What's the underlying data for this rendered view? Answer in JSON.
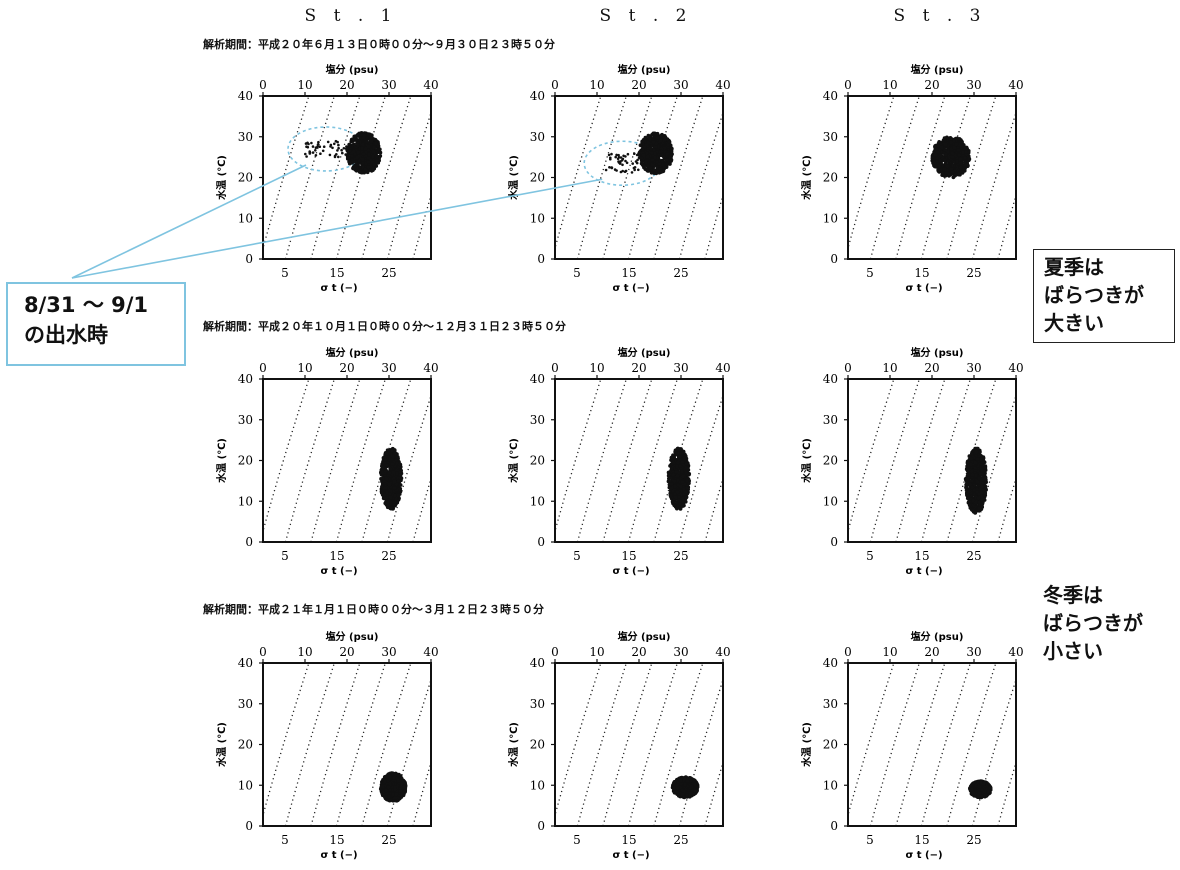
{
  "stations": [
    "S t . 1",
    "S t . 2",
    "S t . 3"
  ],
  "periods": [
    "解析期間：平成２０年６月１３日０時００分〜９月３０日２３時５０分",
    "解析期間：平成２０年１０月１日０時００分〜１２月３１日２３時５０分",
    "解析期間：平成２１年１月１日０時００分〜３月１２日２３時５０分"
  ],
  "notes": {
    "flood": [
      "8/31  〜  9/1",
      "の出水時"
    ],
    "summer": [
      "夏季は",
      "ばらつきが",
      "大きい"
    ],
    "winter": [
      "冬季は",
      "ばらつきが",
      "小さい"
    ]
  },
  "colors": {
    "marker": "#111111",
    "flood_highlight": "#7fc4e0"
  },
  "chart_data": [
    {
      "type": "scatter",
      "station": "S t . 1",
      "season": "summer",
      "xlabel_top": "塩分 (psu)",
      "xlabel_bottom": "σ t (−)",
      "ylabel": "水温 (℃)",
      "salinity_ticks": [
        0,
        10,
        20,
        30,
        40
      ],
      "sigma_t_ticks": [
        5,
        15,
        25
      ],
      "temperature_ticks": [
        0,
        10,
        20,
        30,
        40
      ],
      "xlim": [
        0,
        40
      ],
      "ylim": [
        0,
        40
      ],
      "cluster": {
        "salinity": [
          20,
          28
        ],
        "temperature": [
          21,
          31
        ]
      },
      "outliers": {
        "salinity": [
          10,
          20
        ],
        "temperature": [
          25,
          29
        ]
      },
      "highlight_flood": true
    },
    {
      "type": "scatter",
      "station": "S t . 2",
      "season": "summer",
      "xlabel_top": "塩分 (psu)",
      "xlabel_bottom": "σ t (−)",
      "ylabel": "水温 (℃)",
      "salinity_ticks": [
        0,
        10,
        20,
        30,
        40
      ],
      "sigma_t_ticks": [
        5,
        15,
        25
      ],
      "temperature_ticks": [
        0,
        10,
        20,
        30,
        40
      ],
      "xlim": [
        0,
        40
      ],
      "ylim": [
        0,
        40
      ],
      "cluster": {
        "salinity": [
          20,
          28
        ],
        "temperature": [
          21,
          31
        ]
      },
      "outliers": {
        "salinity": [
          12,
          20
        ],
        "temperature": [
          21,
          26
        ]
      },
      "highlight_flood": true
    },
    {
      "type": "scatter",
      "station": "S t . 3",
      "season": "summer",
      "xlabel_top": "塩分 (psu)",
      "xlabel_bottom": "σ t (−)",
      "ylabel": "水温 (℃)",
      "salinity_ticks": [
        0,
        10,
        20,
        30,
        40
      ],
      "sigma_t_ticks": [
        5,
        15,
        25
      ],
      "temperature_ticks": [
        0,
        10,
        20,
        30,
        40
      ],
      "xlim": [
        0,
        40
      ],
      "ylim": [
        0,
        40
      ],
      "cluster": {
        "salinity": [
          20,
          29
        ],
        "temperature": [
          20,
          30
        ]
      },
      "outliers": null,
      "highlight_flood": false
    },
    {
      "type": "scatter",
      "station": "S t . 1",
      "season": "autumn",
      "xlabel_top": "塩分 (psu)",
      "xlabel_bottom": "σ t (−)",
      "ylabel": "水温 (℃)",
      "salinity_ticks": [
        0,
        10,
        20,
        30,
        40
      ],
      "sigma_t_ticks": [
        5,
        15,
        25
      ],
      "temperature_ticks": [
        0,
        10,
        20,
        30,
        40
      ],
      "xlim": [
        0,
        40
      ],
      "ylim": [
        0,
        40
      ],
      "cluster": {
        "salinity": [
          28,
          33
        ],
        "temperature": [
          8,
          23
        ]
      },
      "outliers": null,
      "highlight_flood": false
    },
    {
      "type": "scatter",
      "station": "S t . 2",
      "season": "autumn",
      "xlabel_top": "塩分 (psu)",
      "xlabel_bottom": "σ t (−)",
      "ylabel": "水温 (℃)",
      "salinity_ticks": [
        0,
        10,
        20,
        30,
        40
      ],
      "sigma_t_ticks": [
        5,
        15,
        25
      ],
      "temperature_ticks": [
        0,
        10,
        20,
        30,
        40
      ],
      "xlim": [
        0,
        40
      ],
      "ylim": [
        0,
        40
      ],
      "cluster": {
        "salinity": [
          27,
          32
        ],
        "temperature": [
          8,
          23
        ]
      },
      "outliers": null,
      "highlight_flood": false
    },
    {
      "type": "scatter",
      "station": "S t . 3",
      "season": "autumn",
      "xlabel_top": "塩分 (psu)",
      "xlabel_bottom": "σ t (−)",
      "ylabel": "水温 (℃)",
      "salinity_ticks": [
        0,
        10,
        20,
        30,
        40
      ],
      "sigma_t_ticks": [
        5,
        15,
        25
      ],
      "temperature_ticks": [
        0,
        10,
        20,
        30,
        40
      ],
      "xlim": [
        0,
        40
      ],
      "ylim": [
        0,
        40
      ],
      "cluster": {
        "salinity": [
          28,
          33
        ],
        "temperature": [
          7,
          23
        ]
      },
      "outliers": null,
      "highlight_flood": false
    },
    {
      "type": "scatter",
      "station": "S t . 1",
      "season": "winter",
      "xlabel_top": "塩分 (psu)",
      "xlabel_bottom": "σ t (−)",
      "ylabel": "水温 (℃)",
      "salinity_ticks": [
        0,
        10,
        20,
        30,
        40
      ],
      "sigma_t_ticks": [
        5,
        15,
        25
      ],
      "temperature_ticks": [
        0,
        10,
        20,
        30,
        40
      ],
      "xlim": [
        0,
        40
      ],
      "ylim": [
        0,
        40
      ],
      "cluster": {
        "salinity": [
          28,
          34
        ],
        "temperature": [
          6,
          13
        ]
      },
      "outliers": null,
      "highlight_flood": false
    },
    {
      "type": "scatter",
      "station": "S t . 2",
      "season": "winter",
      "xlabel_top": "塩分 (psu)",
      "xlabel_bottom": "σ t (−)",
      "ylabel": "水温 (℃)",
      "salinity_ticks": [
        0,
        10,
        20,
        30,
        40
      ],
      "sigma_t_ticks": [
        5,
        15,
        25
      ],
      "temperature_ticks": [
        0,
        10,
        20,
        30,
        40
      ],
      "xlim": [
        0,
        40
      ],
      "ylim": [
        0,
        40
      ],
      "cluster": {
        "salinity": [
          28,
          34
        ],
        "temperature": [
          7,
          12
        ]
      },
      "outliers": null,
      "highlight_flood": false
    },
    {
      "type": "scatter",
      "station": "S t . 3",
      "season": "winter",
      "xlabel_top": "塩分 (psu)",
      "xlabel_bottom": "σ t (−)",
      "ylabel": "水温 (℃)",
      "salinity_ticks": [
        0,
        10,
        20,
        30,
        40
      ],
      "sigma_t_ticks": [
        5,
        15,
        25
      ],
      "temperature_ticks": [
        0,
        10,
        20,
        30,
        40
      ],
      "xlim": [
        0,
        40
      ],
      "ylim": [
        0,
        40
      ],
      "cluster": {
        "salinity": [
          29,
          34
        ],
        "temperature": [
          7,
          11
        ]
      },
      "outliers": null,
      "highlight_flood": false
    }
  ]
}
